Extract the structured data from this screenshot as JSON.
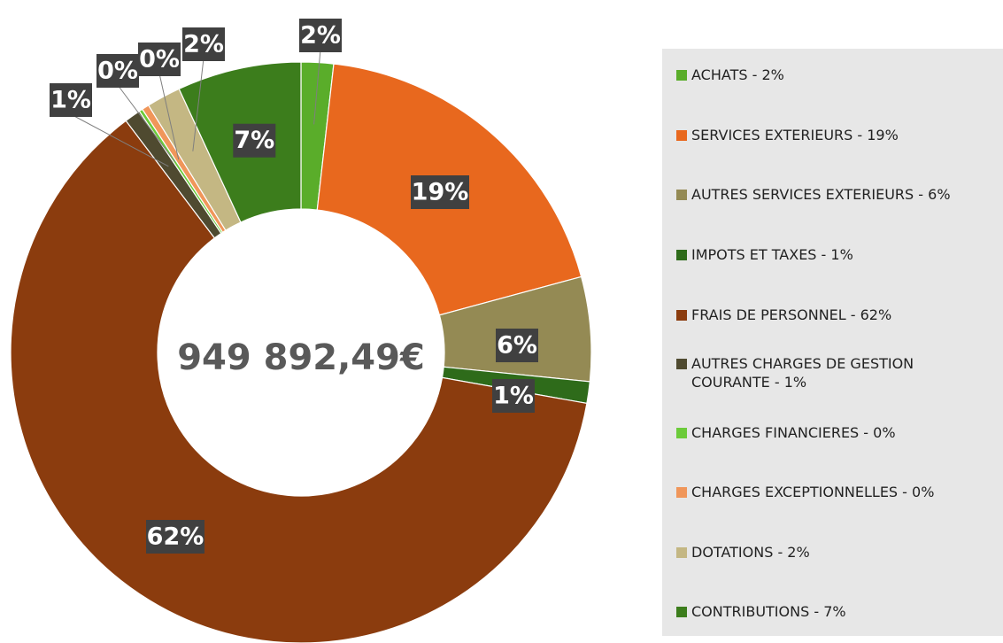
{
  "chart_data": {
    "type": "donut",
    "center_label": "949 892,49€",
    "categories": [
      "ACHATS - 2%",
      "SERVICES EXTERIEURS - 19%",
      "AUTRES SERVICES EXTERIEURS - 6%",
      "IMPOTS ET TAXES - 1%",
      "FRAIS DE PERSONNEL - 62%",
      "AUTRES CHARGES DE GESTION COURANTE - 1%",
      "CHARGES FINANCIERES - 0%",
      "CHARGES EXCEPTIONNELLES - 0%",
      "DOTATIONS - 2%",
      "CONTRIBUTIONS - 7%"
    ],
    "values": [
      1.8,
      19.0,
      5.8,
      1.2,
      61.9,
      0.9,
      0.2,
      0.4,
      1.9,
      6.9
    ],
    "value_labels": [
      "2%",
      "19%",
      "6%",
      "1%",
      "62%",
      "1%",
      "0%",
      "0%",
      "2%",
      "7%"
    ],
    "colors": [
      "#5aad2a",
      "#e8681e",
      "#948a54",
      "#2e6b1a",
      "#8b3c0e",
      "#4f4a30",
      "#6ccb3a",
      "#f0965a",
      "#c4b783",
      "#3c7d1c"
    ],
    "legend": "right"
  }
}
